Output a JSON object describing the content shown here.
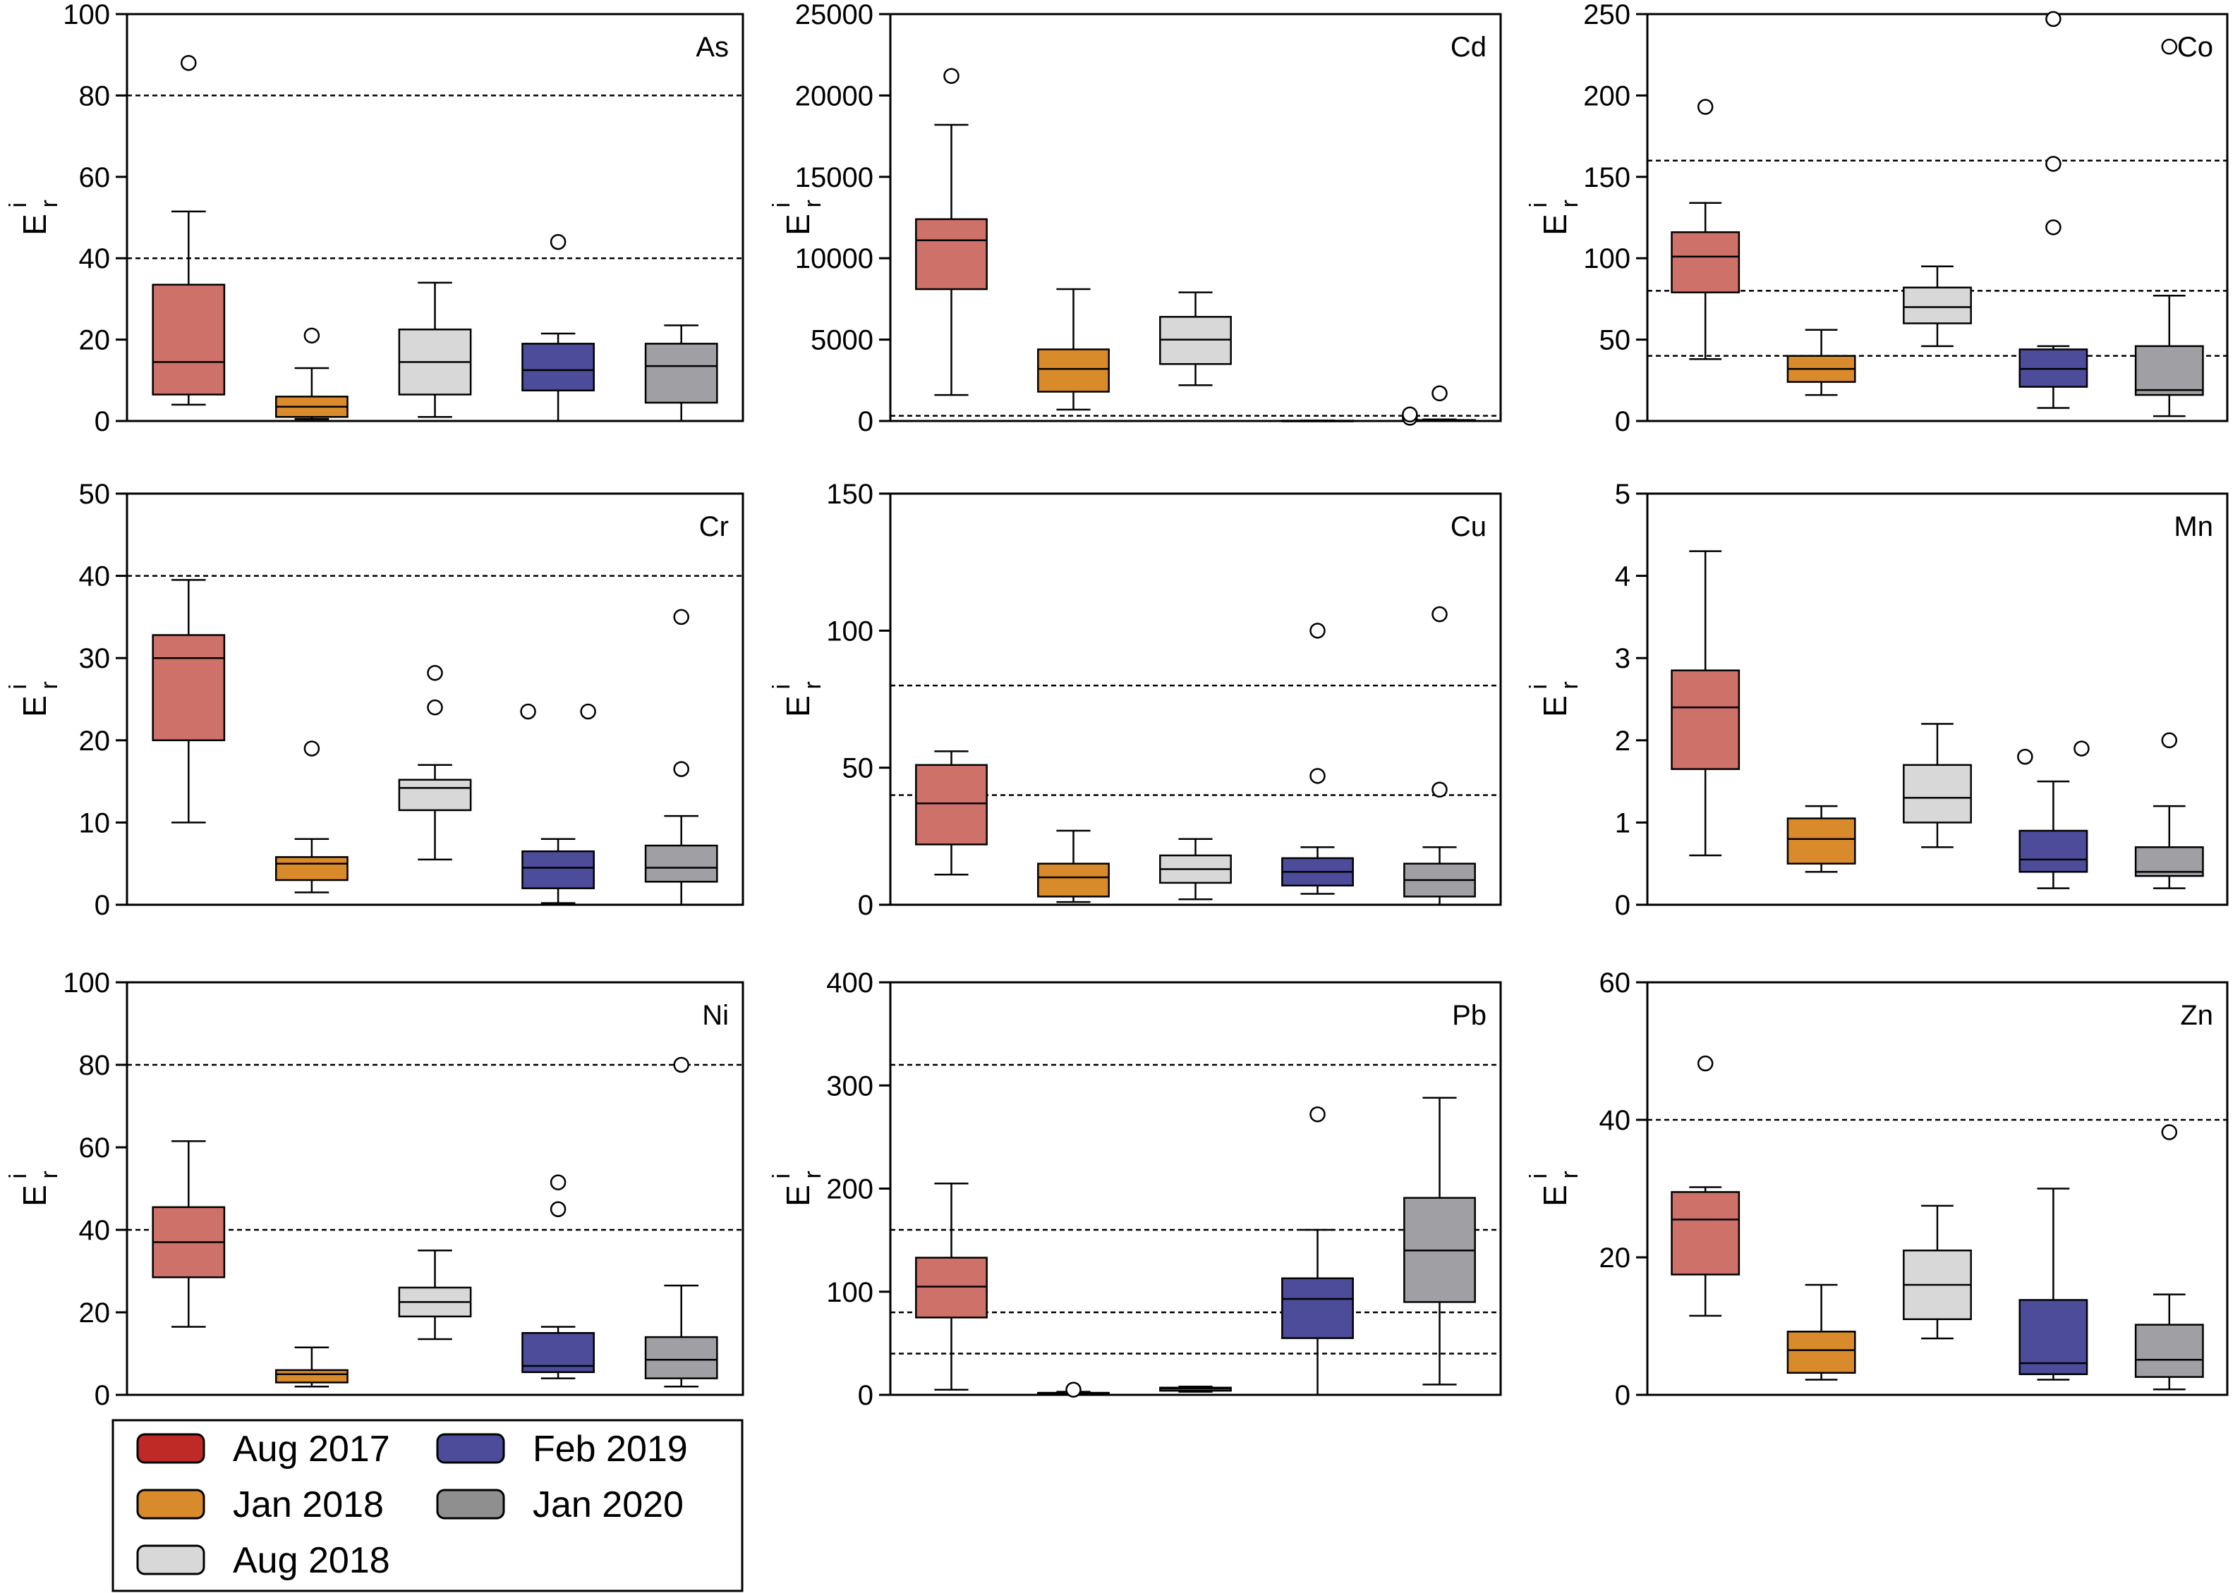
{
  "series": [
    {
      "name": "Aug 2017",
      "color": "#cd7169",
      "legend_color": "#bf2a27"
    },
    {
      "name": "Jan 2018",
      "color": "#d98a2a",
      "legend_color": "#d98a2a"
    },
    {
      "name": "Aug 2018",
      "color": "#d8d8d8",
      "legend_color": "#d8d8d8"
    },
    {
      "name": "Feb 2019",
      "color": "#4c4c9a",
      "legend_color": "#4c4c9a"
    },
    {
      "name": "Jan 2020",
      "color": "#a0a0a4",
      "legend_color": "#8f8f8f"
    }
  ],
  "chart_data": [
    {
      "type": "box",
      "label": "As",
      "ylabel": "E",
      "ylabel_sup": "i",
      "ylabel_sub": "r",
      "ylim": [
        0,
        100
      ],
      "yticks": [
        0,
        20,
        40,
        60,
        80,
        100
      ],
      "thresholds": [
        40,
        80
      ],
      "boxes": [
        {
          "min": 4,
          "q1": 6.5,
          "median": 14.5,
          "q3": 33.5,
          "max": 51.5,
          "outliers": [
            88
          ]
        },
        {
          "min": 0.5,
          "q1": 1,
          "median": 3.5,
          "q3": 6,
          "max": 13,
          "outliers": [
            21
          ]
        },
        {
          "min": 1,
          "q1": 6.5,
          "median": 14.5,
          "q3": 22.5,
          "max": 34,
          "outliers": []
        },
        {
          "min": 0,
          "q1": 7.5,
          "median": 12.5,
          "q3": 19,
          "max": 21.5,
          "outliers": [
            44
          ]
        },
        {
          "min": 0,
          "q1": 4.5,
          "median": 13.5,
          "q3": 19,
          "max": 23.5,
          "outliers": []
        }
      ]
    },
    {
      "type": "box",
      "label": "Cd",
      "ylabel": "E",
      "ylabel_sup": "i",
      "ylabel_sub": "r",
      "ylim": [
        0,
        25000
      ],
      "yticks": [
        0,
        5000,
        10000,
        15000,
        20000,
        25000
      ],
      "thresholds": [
        320
      ],
      "boxes": [
        {
          "min": 1600,
          "q1": 8100,
          "median": 11100,
          "q3": 12400,
          "max": 18200,
          "outliers": [
            21200
          ]
        },
        {
          "min": 700,
          "q1": 1800,
          "median": 3200,
          "q3": 4400,
          "max": 8100,
          "outliers": []
        },
        {
          "min": 2200,
          "q1": 3500,
          "median": 5000,
          "q3": 6400,
          "max": 7900,
          "outliers": []
        },
        {
          "min": 0,
          "q1": 0,
          "median": 10,
          "q3": 20,
          "max": 30,
          "outliers": []
        },
        {
          "min": 0,
          "q1": 20,
          "median": 40,
          "q3": 60,
          "max": 100,
          "outliers": [
            200,
            1700,
            400
          ]
        }
      ]
    },
    {
      "type": "box",
      "label": "Co",
      "ylabel": "E",
      "ylabel_sup": "i",
      "ylabel_sub": "r",
      "ylim": [
        0,
        250
      ],
      "yticks": [
        0,
        50,
        100,
        150,
        200,
        250
      ],
      "thresholds": [
        40,
        80,
        160
      ],
      "boxes": [
        {
          "min": 38,
          "q1": 79,
          "median": 101,
          "q3": 116,
          "max": 134,
          "outliers": [
            193
          ]
        },
        {
          "min": 16,
          "q1": 24,
          "median": 32,
          "q3": 40,
          "max": 56,
          "outliers": []
        },
        {
          "min": 46,
          "q1": 60,
          "median": 70,
          "q3": 82,
          "max": 95,
          "outliers": []
        },
        {
          "min": 8,
          "q1": 21,
          "median": 32,
          "q3": 44,
          "max": 46,
          "outliers": [
            119,
            158,
            247
          ]
        },
        {
          "min": 3,
          "q1": 16,
          "median": 19,
          "q3": 46,
          "max": 77,
          "outliers": [
            230
          ]
        }
      ]
    },
    {
      "type": "box",
      "label": "Cr",
      "ylabel": "E",
      "ylabel_sup": "i",
      "ylabel_sub": "r",
      "ylim": [
        0,
        50
      ],
      "yticks": [
        0,
        10,
        20,
        30,
        40,
        50
      ],
      "thresholds": [
        40
      ],
      "boxes": [
        {
          "min": 10,
          "q1": 20,
          "median": 30,
          "q3": 32.8,
          "max": 39.5,
          "outliers": []
        },
        {
          "min": 1.5,
          "q1": 3,
          "median": 5,
          "q3": 5.8,
          "max": 8,
          "outliers": [
            19
          ]
        },
        {
          "min": 5.5,
          "q1": 11.5,
          "median": 14.2,
          "q3": 15.2,
          "max": 17,
          "outliers": [
            24,
            28.2
          ]
        },
        {
          "min": 0.2,
          "q1": 2,
          "median": 4.5,
          "q3": 6.5,
          "max": 8,
          "outliers": [
            23.5,
            23.5
          ]
        },
        {
          "min": 0,
          "q1": 2.8,
          "median": 4.5,
          "q3": 7.2,
          "max": 10.8,
          "outliers": [
            16.5,
            35
          ]
        }
      ]
    },
    {
      "type": "box",
      "label": "Cu",
      "ylabel": "E",
      "ylabel_sup": "i",
      "ylabel_sub": "r",
      "ylim": [
        0,
        150
      ],
      "yticks": [
        0,
        50,
        100,
        150
      ],
      "thresholds": [
        40,
        80
      ],
      "boxes": [
        {
          "min": 11,
          "q1": 22,
          "median": 37,
          "q3": 51,
          "max": 56,
          "outliers": []
        },
        {
          "min": 1,
          "q1": 3,
          "median": 10,
          "q3": 15,
          "max": 27,
          "outliers": []
        },
        {
          "min": 2,
          "q1": 8,
          "median": 13,
          "q3": 18,
          "max": 24,
          "outliers": []
        },
        {
          "min": 4,
          "q1": 7,
          "median": 12,
          "q3": 17,
          "max": 21,
          "outliers": [
            47,
            100
          ]
        },
        {
          "min": 0,
          "q1": 3,
          "median": 9,
          "q3": 15,
          "max": 21,
          "outliers": [
            42,
            106
          ]
        }
      ]
    },
    {
      "type": "box",
      "label": "Mn",
      "ylabel": "E",
      "ylabel_sup": "i",
      "ylabel_sub": "r",
      "ylim": [
        0,
        5
      ],
      "yticks": [
        0,
        1,
        2,
        3,
        4,
        5
      ],
      "thresholds": [],
      "boxes": [
        {
          "min": 0.6,
          "q1": 1.65,
          "median": 2.4,
          "q3": 2.85,
          "max": 4.3,
          "outliers": []
        },
        {
          "min": 0.4,
          "q1": 0.5,
          "median": 0.8,
          "q3": 1.05,
          "max": 1.2,
          "outliers": []
        },
        {
          "min": 0.7,
          "q1": 1.0,
          "median": 1.3,
          "q3": 1.7,
          "max": 2.2,
          "outliers": []
        },
        {
          "min": 0.2,
          "q1": 0.4,
          "median": 0.55,
          "q3": 0.9,
          "max": 1.5,
          "outliers": [
            1.8,
            1.9
          ]
        },
        {
          "min": 0.2,
          "q1": 0.35,
          "median": 0.4,
          "q3": 0.7,
          "max": 1.2,
          "outliers": [
            2.0
          ]
        }
      ]
    },
    {
      "type": "box",
      "label": "Ni",
      "ylabel": "E",
      "ylabel_sup": "i",
      "ylabel_sub": "r",
      "ylim": [
        0,
        100
      ],
      "yticks": [
        0,
        20,
        40,
        60,
        80,
        100
      ],
      "thresholds": [
        40,
        80
      ],
      "boxes": [
        {
          "min": 16.5,
          "q1": 28.5,
          "median": 37,
          "q3": 45.5,
          "max": 61.5,
          "outliers": []
        },
        {
          "min": 2,
          "q1": 3,
          "median": 5,
          "q3": 6,
          "max": 11.5,
          "outliers": []
        },
        {
          "min": 13.5,
          "q1": 19,
          "median": 22.5,
          "q3": 26,
          "max": 35,
          "outliers": []
        },
        {
          "min": 4,
          "q1": 5.5,
          "median": 7,
          "q3": 15,
          "max": 16.5,
          "outliers": [
            45,
            51.5
          ]
        },
        {
          "min": 2,
          "q1": 4,
          "median": 8.5,
          "q3": 14,
          "max": 26.5,
          "outliers": [
            80
          ]
        }
      ]
    },
    {
      "type": "box",
      "label": "Pb",
      "ylabel": "E",
      "ylabel_sup": "i",
      "ylabel_sub": "r",
      "ylim": [
        0,
        400
      ],
      "yticks": [
        0,
        100,
        200,
        300,
        400
      ],
      "thresholds": [
        40,
        80,
        160,
        320
      ],
      "boxes": [
        {
          "min": 5,
          "q1": 75,
          "median": 105,
          "q3": 133,
          "max": 205,
          "outliers": []
        },
        {
          "min": 0,
          "q1": 0.5,
          "median": 1,
          "q3": 2,
          "max": 3,
          "outliers": [
            5
          ]
        },
        {
          "min": 3,
          "q1": 4,
          "median": 6,
          "q3": 7,
          "max": 8,
          "outliers": []
        },
        {
          "min": 0,
          "q1": 55,
          "median": 93,
          "q3": 113,
          "max": 160,
          "outliers": [
            272
          ]
        },
        {
          "min": 10,
          "q1": 90,
          "median": 140,
          "q3": 191,
          "max": 288,
          "outliers": []
        }
      ]
    },
    {
      "type": "box",
      "label": "Zn",
      "ylabel": "E",
      "ylabel_sup": "i",
      "ylabel_sub": "r",
      "ylim": [
        0,
        60
      ],
      "yticks": [
        0,
        20,
        40,
        60
      ],
      "thresholds": [
        40
      ],
      "boxes": [
        {
          "min": 11.5,
          "q1": 17.5,
          "median": 25.5,
          "q3": 29.5,
          "max": 30.2,
          "outliers": [
            48.2
          ]
        },
        {
          "min": 2.2,
          "q1": 3.2,
          "median": 6.5,
          "q3": 9.2,
          "max": 16,
          "outliers": []
        },
        {
          "min": 8.2,
          "q1": 11,
          "median": 16,
          "q3": 21,
          "max": 27.5,
          "outliers": []
        },
        {
          "min": 2.2,
          "q1": 3,
          "median": 4.6,
          "q3": 13.8,
          "max": 30,
          "outliers": []
        },
        {
          "min": 0.8,
          "q1": 2.6,
          "median": 5.1,
          "q3": 10.2,
          "max": 14.6,
          "outliers": [
            38.2
          ]
        }
      ]
    }
  ]
}
